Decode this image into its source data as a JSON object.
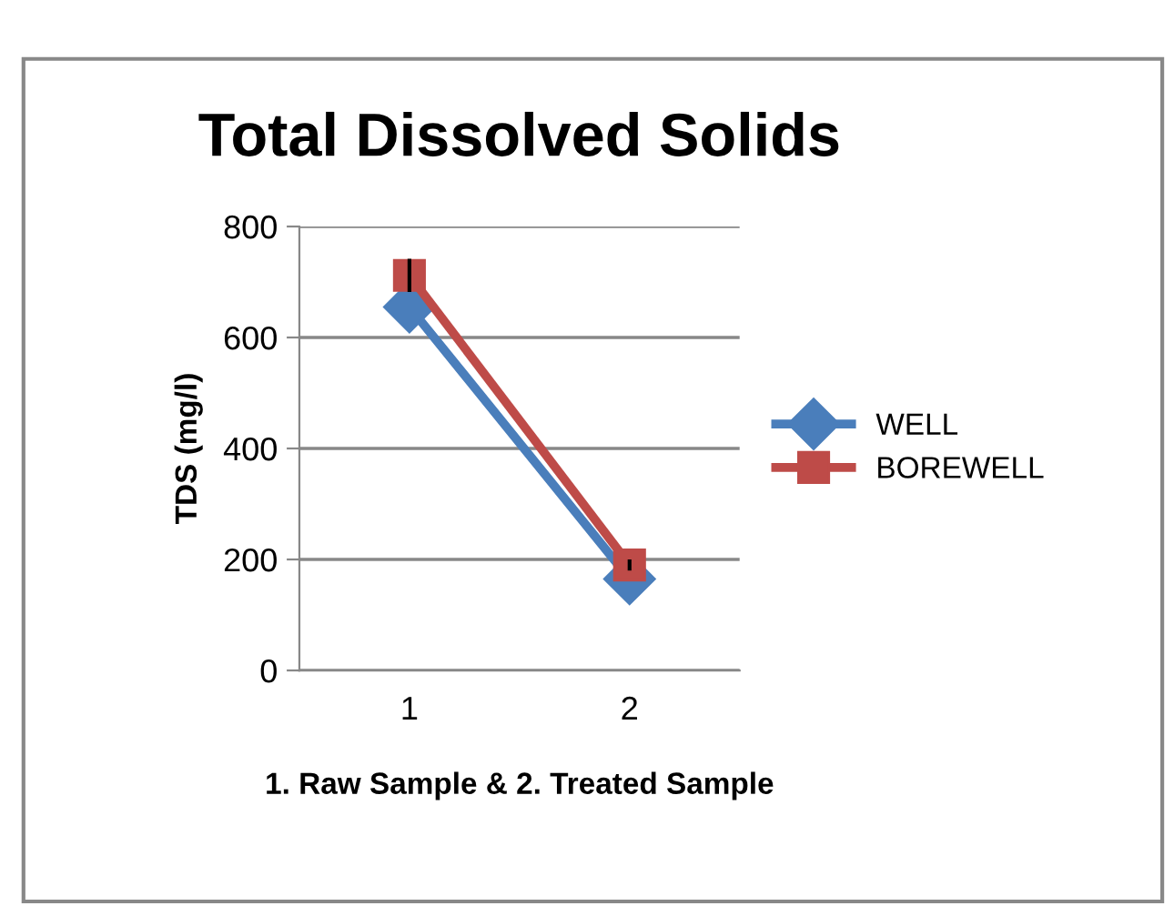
{
  "chart_data": {
    "type": "line",
    "title": "Total Dissolved Solids",
    "xlabel": "1. Raw Sample & 2. Treated Sample",
    "ylabel": "TDS (mg/l)",
    "categories": [
      "1",
      "2"
    ],
    "series": [
      {
        "name": "WELL",
        "color": "#4a7ebb",
        "values": [
          655,
          165
        ],
        "marker": "diamond"
      },
      {
        "name": "BOREWELL",
        "color": "#be4b48",
        "values": [
          712,
          190
        ],
        "marker": "square",
        "errors": [
          30,
          10
        ]
      }
    ],
    "ylim": [
      0,
      800
    ],
    "yticks": [
      0,
      200,
      400,
      600,
      800
    ],
    "grid": "y",
    "legend": "right"
  }
}
